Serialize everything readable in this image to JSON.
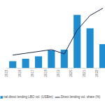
{
  "chart_data": {
    "type": "bar",
    "categories": [
      "2015",
      "2016",
      "2017",
      "2018",
      "2019",
      "2020",
      "2021",
      "2022"
    ],
    "series": [
      {
        "name": "nal direct lending LBO vol. (US$bn)",
        "type": "bar",
        "color": "#1f8ccf",
        "values": [
          11,
          15,
          19,
          29,
          30,
          87,
          65,
          39
        ]
      },
      {
        "name": "Direct lending vol. share (%)",
        "type": "line",
        "axis": "y2",
        "color": "#1b2a48",
        "line_style": "solid",
        "values": [
          21,
          24,
          27,
          30,
          23,
          62,
          86,
          98
        ]
      }
    ],
    "ylim": [
      0,
      100
    ],
    "y2lim": [
      0,
      100
    ],
    "tick_labels": "x",
    "grid": false,
    "legend": "bottom"
  }
}
